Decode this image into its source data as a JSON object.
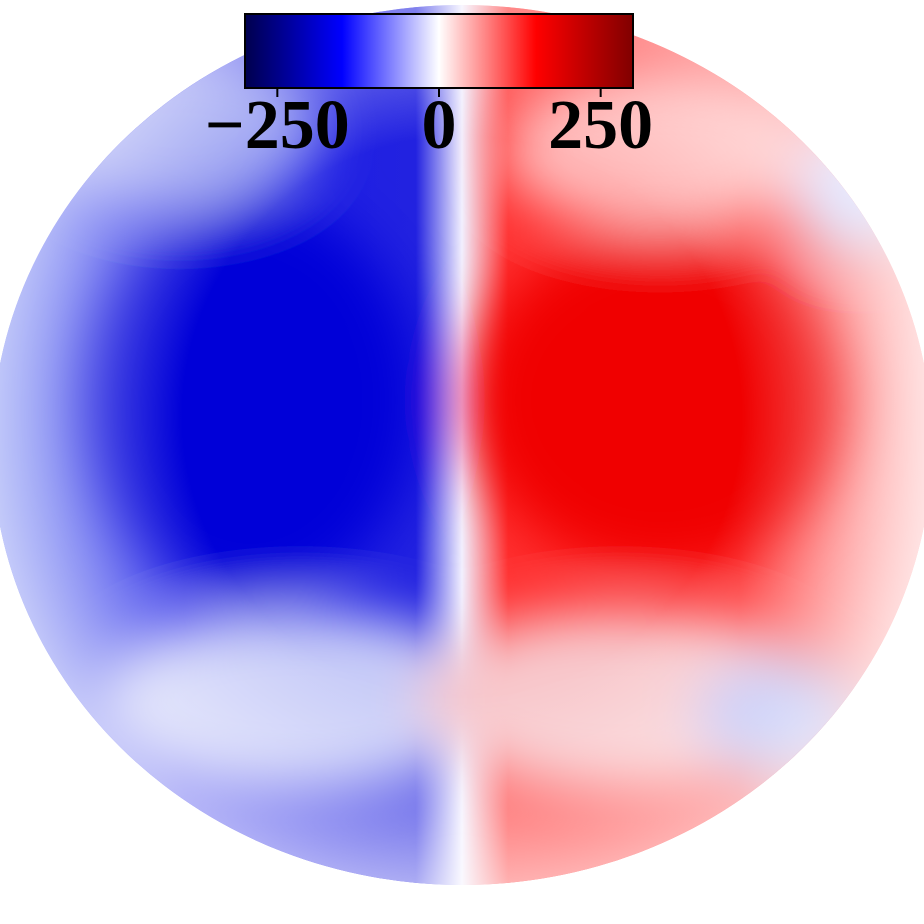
{
  "chart_data": {
    "type": "colormap",
    "colormap": [
      "#00004d",
      "#0000ff",
      "#ffffff",
      "#ff0000",
      "#800000"
    ],
    "clim": [
      -300,
      300
    ],
    "ticks": [
      {
        "value": -250,
        "label": "−250"
      },
      0,
      250
    ]
  }
}
